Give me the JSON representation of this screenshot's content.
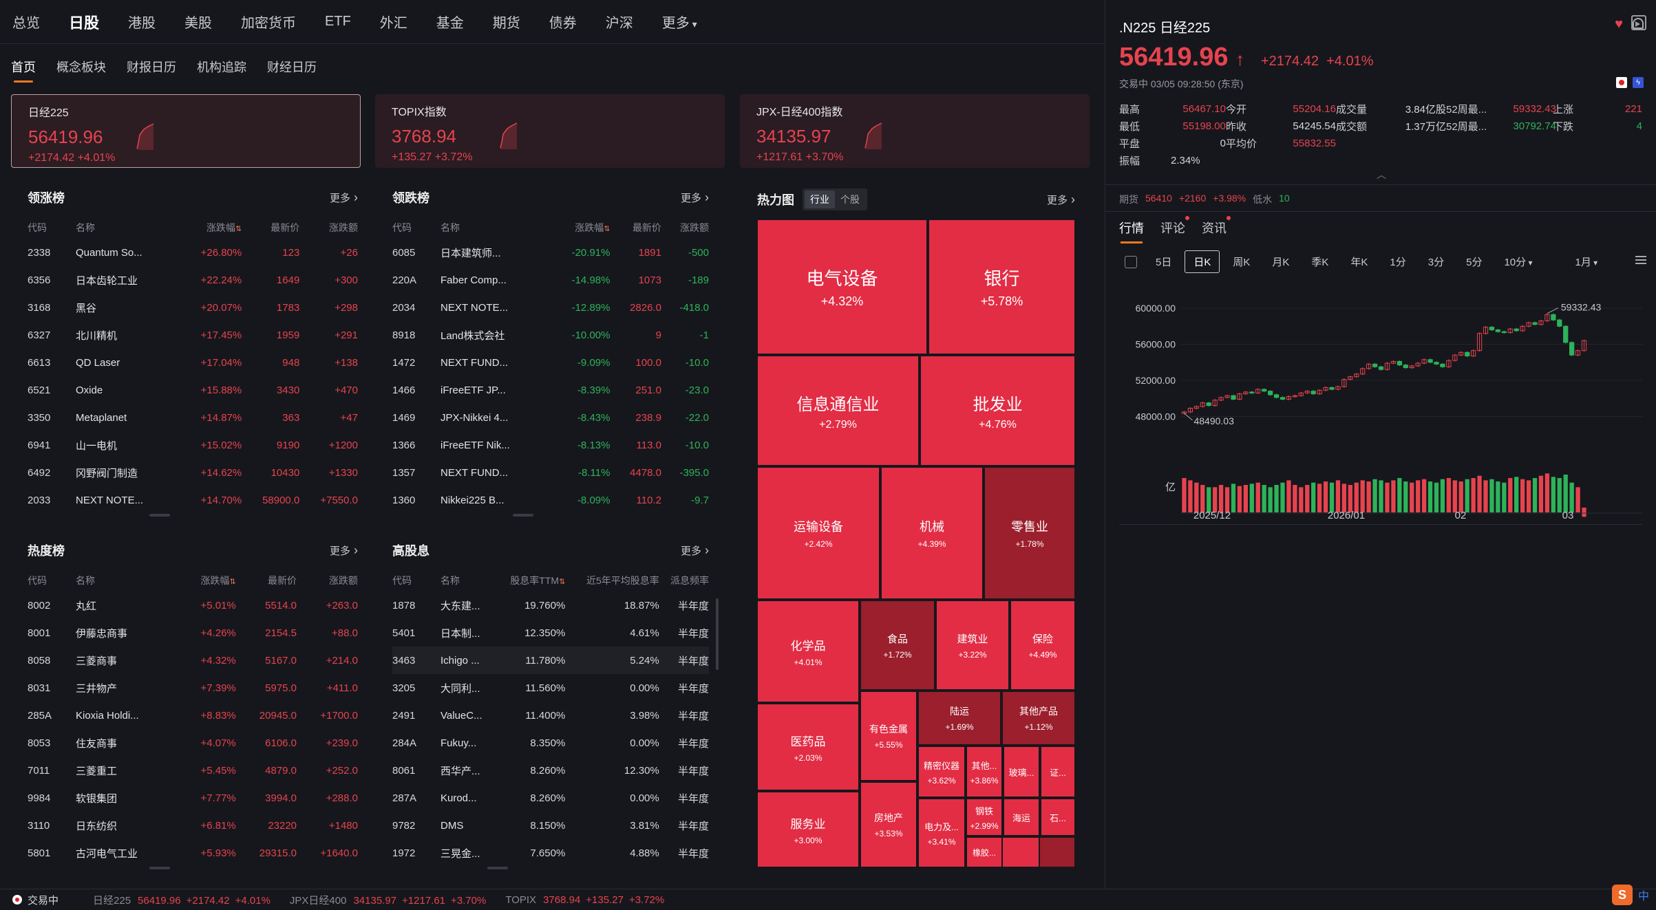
{
  "nav": {
    "markets": [
      "总览",
      "日股",
      "港股",
      "美股",
      "加密货币",
      "ETF",
      "外汇",
      "基金",
      "期货",
      "债券",
      "沪深"
    ],
    "more": "更多"
  },
  "subtabs": [
    "首页",
    "概念板块",
    "财报日历",
    "机构追踪",
    "财经日历"
  ],
  "index_cards": [
    {
      "name": "日经225",
      "value": "56419.96",
      "change": "+2174.42 +4.01%"
    },
    {
      "name": "TOPIX指数",
      "value": "3768.94",
      "change": "+135.27 +3.72%"
    },
    {
      "name": "JPX-日经400指数",
      "value": "34135.97",
      "change": "+1217.61 +3.70%"
    }
  ],
  "gainers": {
    "title": "领涨榜",
    "more": "更多",
    "headers": [
      "代码",
      "名称",
      "涨跌幅",
      "最新价",
      "涨跌额"
    ],
    "rows": [
      [
        "2338",
        "Quantum So...",
        "+26.80%",
        "123",
        "+26"
      ],
      [
        "6356",
        "日本齿轮工业",
        "+22.24%",
        "1649",
        "+300"
      ],
      [
        "3168",
        "黑谷",
        "+20.07%",
        "1783",
        "+298"
      ],
      [
        "6327",
        "北川精机",
        "+17.45%",
        "1959",
        "+291"
      ],
      [
        "6613",
        "QD Laser",
        "+17.04%",
        "948",
        "+138"
      ],
      [
        "6521",
        "Oxide",
        "+15.88%",
        "3430",
        "+470"
      ],
      [
        "3350",
        "Metaplanet",
        "+14.87%",
        "363",
        "+47"
      ],
      [
        "6941",
        "山一电机",
        "+15.02%",
        "9190",
        "+1200"
      ],
      [
        "6492",
        "冈野阀门制造",
        "+14.62%",
        "10430",
        "+1330"
      ],
      [
        "2033",
        "NEXT NOTE...",
        "+14.70%",
        "58900.0",
        "+7550.0"
      ]
    ]
  },
  "losers": {
    "title": "领跌榜",
    "more": "更多",
    "headers": [
      "代码",
      "名称",
      "涨跌幅",
      "最新价",
      "涨跌额"
    ],
    "rows": [
      [
        "6085",
        "日本建筑师...",
        "-20.91%",
        "1891",
        "-500"
      ],
      [
        "220A",
        "Faber Comp...",
        "-14.98%",
        "1073",
        "-189"
      ],
      [
        "2034",
        "NEXT NOTE...",
        "-12.89%",
        "2826.0",
        "-418.0"
      ],
      [
        "8918",
        "Land株式会社",
        "-10.00%",
        "9",
        "-1"
      ],
      [
        "1472",
        "NEXT FUND...",
        "-9.09%",
        "100.0",
        "-10.0"
      ],
      [
        "1466",
        "iFreeETF JP...",
        "-8.39%",
        "251.0",
        "-23.0"
      ],
      [
        "1469",
        "JPX-Nikkei 4...",
        "-8.43%",
        "238.9",
        "-22.0"
      ],
      [
        "1366",
        "iFreeETF Nik...",
        "-8.13%",
        "113.0",
        "-10.0"
      ],
      [
        "1357",
        "NEXT FUND...",
        "-8.11%",
        "4478.0",
        "-395.0"
      ],
      [
        "1360",
        "Nikkei225 B...",
        "-8.09%",
        "110.2",
        "-9.7"
      ]
    ]
  },
  "hot": {
    "title": "热度榜",
    "more": "更多",
    "headers": [
      "代码",
      "名称",
      "涨跌幅",
      "最新价",
      "涨跌额"
    ],
    "rows": [
      [
        "8002",
        "丸红",
        "+5.01%",
        "5514.0",
        "+263.0"
      ],
      [
        "8001",
        "伊藤忠商事",
        "+4.26%",
        "2154.5",
        "+88.0"
      ],
      [
        "8058",
        "三菱商事",
        "+4.32%",
        "5167.0",
        "+214.0"
      ],
      [
        "8031",
        "三井物产",
        "+7.39%",
        "5975.0",
        "+411.0"
      ],
      [
        "285A",
        "Kioxia Holdi...",
        "+8.83%",
        "20945.0",
        "+1700.0"
      ],
      [
        "8053",
        "住友商事",
        "+4.07%",
        "6106.0",
        "+239.0"
      ],
      [
        "7011",
        "三菱重工",
        "+5.45%",
        "4879.0",
        "+252.0"
      ],
      [
        "9984",
        "软银集团",
        "+7.77%",
        "3994.0",
        "+288.0"
      ],
      [
        "3110",
        "日东纺织",
        "+6.81%",
        "23220",
        "+1480"
      ],
      [
        "5801",
        "古河电气工业",
        "+5.93%",
        "29315.0",
        "+1640.0"
      ]
    ]
  },
  "dividend": {
    "title": "高股息",
    "more": "更多",
    "headers": [
      "代码",
      "名称",
      "股息率TTM",
      "近5年平均股息率",
      "派息频率"
    ],
    "rows": [
      [
        "1878",
        "大东建...",
        "19.760%",
        "18.87%",
        "半年度"
      ],
      [
        "5401",
        "日本制...",
        "12.350%",
        "4.61%",
        "半年度"
      ],
      [
        "3463",
        "Ichigo ...",
        "11.780%",
        "5.24%",
        "半年度"
      ],
      [
        "3205",
        "大同利...",
        "11.560%",
        "0.00%",
        "半年度"
      ],
      [
        "2491",
        "ValueC...",
        "11.400%",
        "3.98%",
        "半年度"
      ],
      [
        "284A",
        "Fukuy...",
        "8.350%",
        "0.00%",
        "半年度"
      ],
      [
        "8061",
        "西华产...",
        "8.260%",
        "12.30%",
        "半年度"
      ],
      [
        "287A",
        "Kurod...",
        "8.260%",
        "0.00%",
        "半年度"
      ],
      [
        "9782",
        "DMS",
        "8.150%",
        "3.81%",
        "半年度"
      ],
      [
        "1972",
        "三晃金...",
        "7.650%",
        "4.88%",
        "半年度"
      ]
    ]
  },
  "heatmap": {
    "title": "热力图",
    "seg": [
      "行业",
      "个股"
    ],
    "more": "更多",
    "tiles": [
      [
        "电气设备",
        "+4.32%"
      ],
      [
        "银行",
        "+5.78%"
      ],
      [
        "信息通信业",
        "+2.79%"
      ],
      [
        "批发业",
        "+4.76%"
      ],
      [
        "运输设备",
        "+2.42%"
      ],
      [
        "机械",
        "+4.39%"
      ],
      [
        "零售业",
        "+1.78%"
      ],
      [
        "化学品",
        "+4.01%"
      ],
      [
        "食品",
        "+1.72%"
      ],
      [
        "建筑业",
        "+3.22%"
      ],
      [
        "保险",
        "+4.49%"
      ],
      [
        "医药品",
        "+2.03%"
      ],
      [
        "有色金属",
        "+5.55%"
      ],
      [
        "陆运",
        "+1.69%"
      ],
      [
        "其他产品",
        "+1.12%"
      ],
      [
        "精密仪器",
        "+3.62%"
      ],
      [
        "其他...",
        "+3.86%"
      ],
      [
        "玻璃...",
        ""
      ],
      [
        "证...",
        ""
      ],
      [
        "服务业",
        "+3.00%"
      ],
      [
        "房地产",
        "+3.53%"
      ],
      [
        "电力及...",
        "+3.41%"
      ],
      [
        "钢铁",
        "+2.99%"
      ],
      [
        "海运",
        ""
      ],
      [
        "石...",
        ""
      ],
      [
        "橡胶...",
        ""
      ]
    ]
  },
  "quote": {
    "code": ".N225",
    "name": "日经225",
    "price": "56419.96",
    "arrow": "↑",
    "change": "+2174.42",
    "pct": "+4.01%",
    "status": "交易中 03/05 09:28:50 (东京)",
    "stats": [
      [
        "最高",
        "56467.10",
        "今开",
        "55204.16",
        "成交量",
        "3.84亿股",
        "52周最...",
        "59332.43",
        "上涨",
        "221"
      ],
      [
        "最低",
        "55198.00",
        "昨收",
        "54245.54",
        "成交额",
        "1.37万亿",
        "52周最...",
        "30792.74",
        "下跌",
        "4"
      ],
      [
        "平盘",
        "0",
        "平均价",
        "55832.55",
        "",
        "",
        "",
        "",
        "",
        ""
      ],
      [
        "振幅",
        "2.34%",
        "",
        "",
        "",
        "",
        "",
        "",
        "",
        ""
      ]
    ],
    "futures": {
      "label": "期货",
      "price": "56410",
      "change": "+2160",
      "pct": "+3.98%",
      "low_label": "低水",
      "low_val": "10"
    }
  },
  "rp_tabs": [
    "行情",
    "评论",
    "资讯"
  ],
  "periods": [
    "5日",
    "日K",
    "周K",
    "月K",
    "季K",
    "年K",
    "1分",
    "3分",
    "5分",
    "10分",
    "1月"
  ],
  "chart_data": {
    "type": "candlestick",
    "y_ticks": [
      "60000.00",
      "56000.00",
      "52000.00",
      "48000.00"
    ],
    "ylim": [
      46500,
      61000
    ],
    "x_labels": [
      "2025/12",
      "2026/01",
      "02",
      "03"
    ],
    "max_label": "59332.43",
    "min_label": "48490.03",
    "vol_label": "亿",
    "closes": [
      48490,
      48900,
      49100,
      49500,
      49200,
      49800,
      50100,
      50300,
      49900,
      50500,
      50700,
      50600,
      51000,
      50800,
      50400,
      50100,
      49900,
      50200,
      50300,
      50600,
      50800,
      50500,
      50900,
      51200,
      51000,
      51300,
      52100,
      52400,
      52700,
      53300,
      53800,
      53500,
      53200,
      53900,
      54100,
      53700,
      53400,
      53600,
      53900,
      54300,
      54000,
      53800,
      53500,
      54200,
      54800,
      55100,
      54700,
      55300,
      57200,
      57900,
      57600,
      57400,
      57300,
      57700,
      57500,
      58000,
      58400,
      58200,
      58600,
      59300,
      58700,
      58000,
      56200,
      54800,
      55300,
      56400
    ],
    "volumes": [
      30,
      28,
      26,
      24,
      22,
      22,
      24,
      22,
      25,
      23,
      24,
      25,
      26,
      24,
      22,
      24,
      26,
      28,
      24,
      22,
      24,
      26,
      25,
      27,
      26,
      28,
      25,
      24,
      26,
      28,
      27,
      29,
      28,
      26,
      28,
      30,
      27,
      26,
      28,
      29,
      27,
      26,
      29,
      30,
      28,
      27,
      29,
      30,
      32,
      28,
      29,
      27,
      26,
      30,
      31,
      29,
      28,
      30,
      32,
      34,
      31,
      30,
      33,
      26,
      22,
      8
    ]
  },
  "statusbar": {
    "status": "交易中",
    "items": [
      [
        "日经225",
        "56419.96",
        "+2174.42",
        "+4.01%"
      ],
      [
        "JPX日经400",
        "34135.97",
        "+1217.61",
        "+3.70%"
      ],
      [
        "TOPIX",
        "3768.94",
        "+135.27",
        "+3.72%"
      ]
    ]
  },
  "ime": {
    "logo": "S",
    "lang": "中"
  }
}
